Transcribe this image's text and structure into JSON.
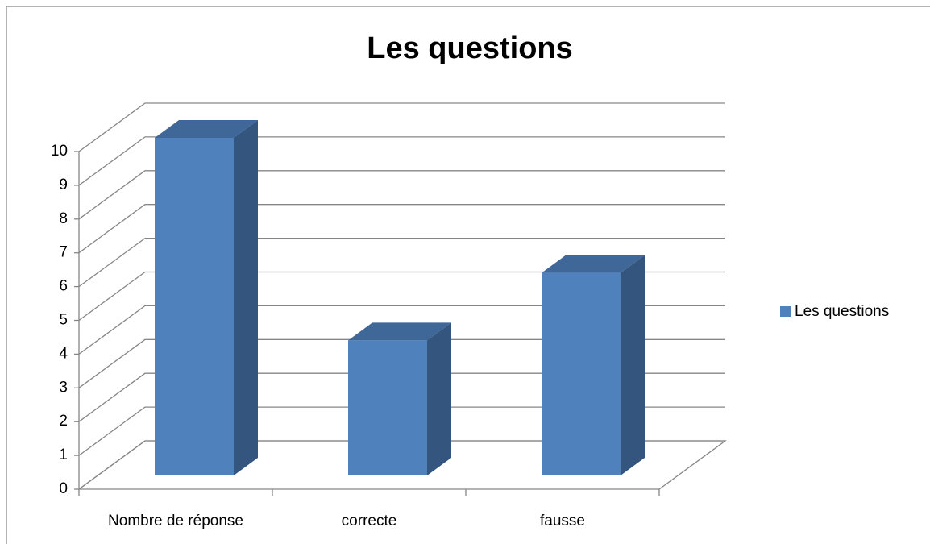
{
  "chart_data": {
    "type": "bar3d",
    "title": "Les questions",
    "categories": [
      "Nombre de réponse",
      "correcte",
      "fausse"
    ],
    "series": [
      {
        "name": "Les questions",
        "color": "#4f81bd",
        "values": [
          10,
          4,
          6
        ]
      }
    ],
    "ylim": [
      0,
      10
    ],
    "yticks": [
      0,
      1,
      2,
      3,
      4,
      5,
      6,
      7,
      8,
      9,
      10
    ],
    "grid": true,
    "legend": "right"
  }
}
